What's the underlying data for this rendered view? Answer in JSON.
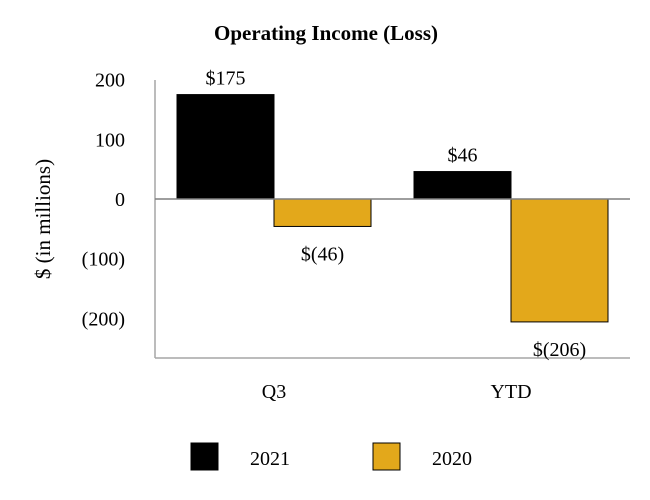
{
  "chart_data": {
    "type": "bar",
    "title": "Operating Income (Loss)",
    "ylabel": "$ (in millions)",
    "xlabel": "",
    "categories": [
      "Q3",
      "YTD"
    ],
    "series": [
      {
        "name": "2021",
        "color": "#000000",
        "values": [
          175,
          46
        ],
        "labels": [
          "$175",
          "$46"
        ]
      },
      {
        "name": "2020",
        "color": "#E3A81B",
        "values": [
          -46,
          -206
        ],
        "labels": [
          "$(46)",
          "$(206)"
        ]
      }
    ],
    "ylim": [
      -250,
      200
    ],
    "yticks": [
      200,
      100,
      0,
      -100,
      -200
    ],
    "ytick_labels": [
      "200",
      "100",
      "0",
      "(100)",
      "(200)"
    ],
    "grid": false,
    "legend_position": "bottom"
  }
}
